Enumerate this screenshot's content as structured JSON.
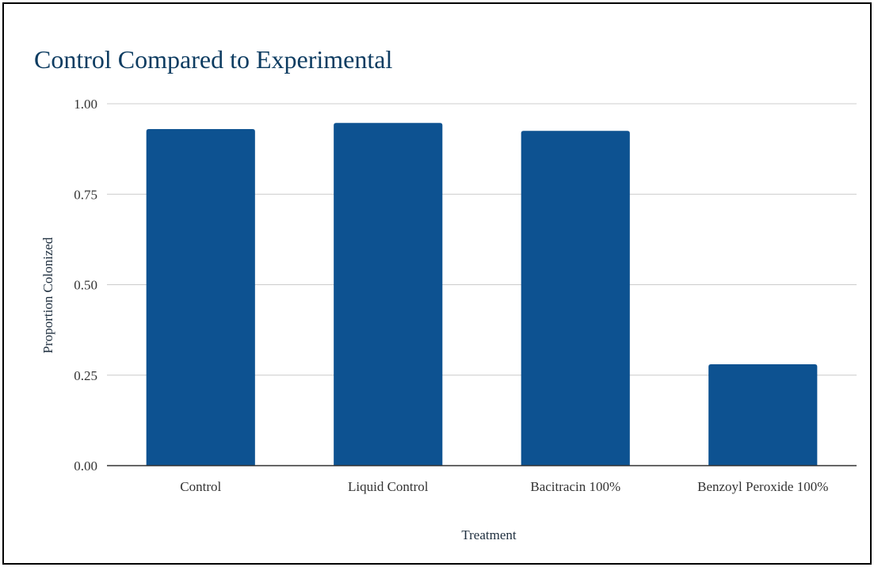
{
  "chart_data": {
    "type": "bar",
    "title": "Control Compared to Experimental",
    "xlabel": "Treatment",
    "ylabel": "Proportion Colonized",
    "categories": [
      "Control",
      "Liquid Control",
      "Bacitracin 100%",
      "Benzoyl Peroxide 100%"
    ],
    "series": [
      {
        "values": [
          0.93,
          0.947,
          0.925,
          0.28
        ]
      }
    ],
    "ylim": [
      0,
      1
    ],
    "yticks": [
      "0.00",
      "0.25",
      "0.50",
      "0.75",
      "1.00"
    ],
    "grid": true,
    "legend": "none",
    "bar_color": "#0d5291",
    "title_color": "#0d3c61"
  }
}
